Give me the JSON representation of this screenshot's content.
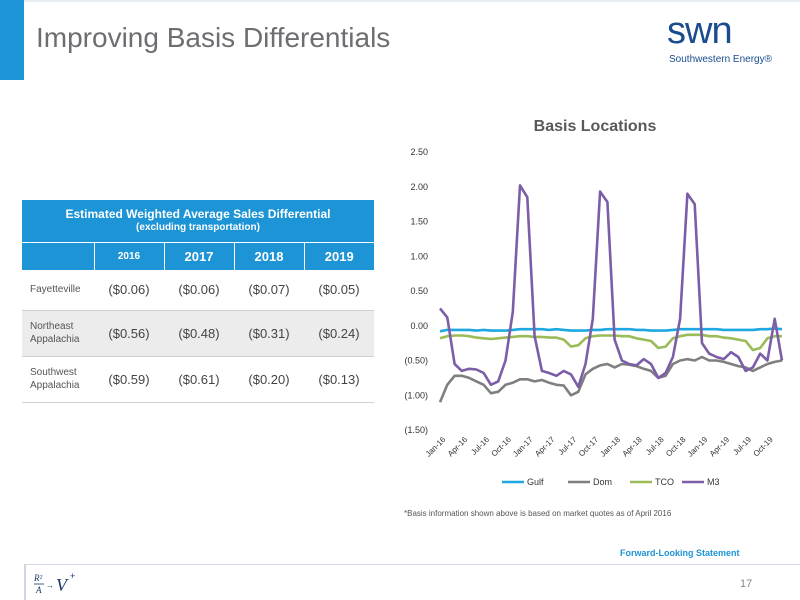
{
  "slide": {
    "title": "Improving Basis Differentials",
    "page_number": "17",
    "forward_looking": "Forward-Looking Statement",
    "footnote": "*Basis information shown above is based on market quotes as of April 2016"
  },
  "logo": {
    "wordmark": "swn",
    "subtitle": "Southwestern Energy®"
  },
  "colors": {
    "accent": "#1d94d6",
    "Gulf": "#1fa7e1",
    "Dom": "#7f7f7f",
    "TCO": "#9bbb59",
    "M3": "#7b5ea7"
  },
  "table": {
    "title": "Estimated Weighted Average Sales Differential",
    "subtitle": "(excluding transportation)",
    "years": [
      "2016",
      "2017",
      "2018",
      "2019"
    ],
    "rows": [
      {
        "label": "Fayetteville",
        "values": [
          "($0.06)",
          "($0.06)",
          "($0.07)",
          "($0.05)"
        ]
      },
      {
        "label_line1": "Northeast",
        "label_line2": "Appalachia",
        "values": [
          "($0.56)",
          "($0.48)",
          "($0.31)",
          "($0.24)"
        ]
      },
      {
        "label_line1": "Southwest",
        "label_line2": "Appalachia",
        "values": [
          "($0.59)",
          "($0.61)",
          "($0.20)",
          "($0.13)"
        ]
      }
    ]
  },
  "chart_data": {
    "type": "line",
    "title": "Basis Locations",
    "ylim": [
      -1.5,
      2.5
    ],
    "y_ticks": [
      "2.50",
      "2.00",
      "1.50",
      "1.00",
      "0.50",
      "0.00",
      "(0.50)",
      "(1.00)",
      "(1.50)"
    ],
    "x_tick_labels": [
      "Jan-16",
      "Apr-16",
      "Jul-16",
      "Oct-16",
      "Jan-17",
      "Apr-17",
      "Jul-17",
      "Oct-17",
      "Jan-18",
      "Apr-18",
      "Jul-18",
      "Oct-18",
      "Jan-19",
      "Apr-19",
      "Jul-19",
      "Oct-19"
    ],
    "x_months": 48,
    "legend_position": "bottom",
    "series": [
      {
        "name": "Gulf",
        "values": [
          -0.08,
          -0.06,
          -0.06,
          -0.06,
          -0.06,
          -0.07,
          -0.06,
          -0.07,
          -0.07,
          -0.07,
          -0.06,
          -0.05,
          -0.05,
          -0.05,
          -0.05,
          -0.06,
          -0.05,
          -0.06,
          -0.07,
          -0.07,
          -0.07,
          -0.06,
          -0.06,
          -0.05,
          -0.05,
          -0.05,
          -0.05,
          -0.06,
          -0.06,
          -0.07,
          -0.07,
          -0.07,
          -0.06,
          -0.05,
          -0.05,
          -0.05,
          -0.05,
          -0.05,
          -0.05,
          -0.06,
          -0.06,
          -0.06,
          -0.06,
          -0.06,
          -0.05,
          -0.05,
          -0.04,
          -0.05
        ]
      },
      {
        "name": "Dom",
        "values": [
          -1.1,
          -0.85,
          -0.72,
          -0.72,
          -0.75,
          -0.8,
          -0.85,
          -0.97,
          -0.95,
          -0.85,
          -0.82,
          -0.77,
          -0.77,
          -0.8,
          -0.78,
          -0.82,
          -0.85,
          -0.86,
          -1.0,
          -0.95,
          -0.7,
          -0.62,
          -0.57,
          -0.55,
          -0.6,
          -0.55,
          -0.56,
          -0.58,
          -0.62,
          -0.65,
          -0.75,
          -0.72,
          -0.55,
          -0.5,
          -0.48,
          -0.5,
          -0.45,
          -0.5,
          -0.5,
          -0.52,
          -0.55,
          -0.58,
          -0.6,
          -0.65,
          -0.6,
          -0.55,
          -0.52,
          -0.5
        ]
      },
      {
        "name": "TCO",
        "values": [
          -0.18,
          -0.15,
          -0.14,
          -0.14,
          -0.15,
          -0.17,
          -0.18,
          -0.19,
          -0.18,
          -0.17,
          -0.16,
          -0.15,
          -0.15,
          -0.16,
          -0.16,
          -0.17,
          -0.17,
          -0.2,
          -0.3,
          -0.28,
          -0.18,
          -0.15,
          -0.14,
          -0.14,
          -0.14,
          -0.15,
          -0.15,
          -0.18,
          -0.2,
          -0.22,
          -0.32,
          -0.3,
          -0.18,
          -0.15,
          -0.13,
          -0.13,
          -0.13,
          -0.15,
          -0.15,
          -0.17,
          -0.18,
          -0.2,
          -0.22,
          -0.35,
          -0.32,
          -0.18,
          -0.15,
          -0.15
        ]
      },
      {
        "name": "M3",
        "values": [
          0.25,
          0.12,
          -0.55,
          -0.65,
          -0.62,
          -0.63,
          -0.68,
          -0.85,
          -0.8,
          -0.5,
          0.2,
          2.02,
          1.85,
          -0.15,
          -0.65,
          -0.68,
          -0.72,
          -0.65,
          -0.7,
          -0.88,
          -0.55,
          0.1,
          1.93,
          1.78,
          -0.2,
          -0.5,
          -0.55,
          -0.57,
          -0.48,
          -0.55,
          -0.75,
          -0.68,
          -0.45,
          0.1,
          1.9,
          1.75,
          -0.25,
          -0.4,
          -0.45,
          -0.48,
          -0.38,
          -0.45,
          -0.65,
          -0.6,
          -0.4,
          -0.5,
          0.1,
          -0.5
        ]
      }
    ]
  }
}
